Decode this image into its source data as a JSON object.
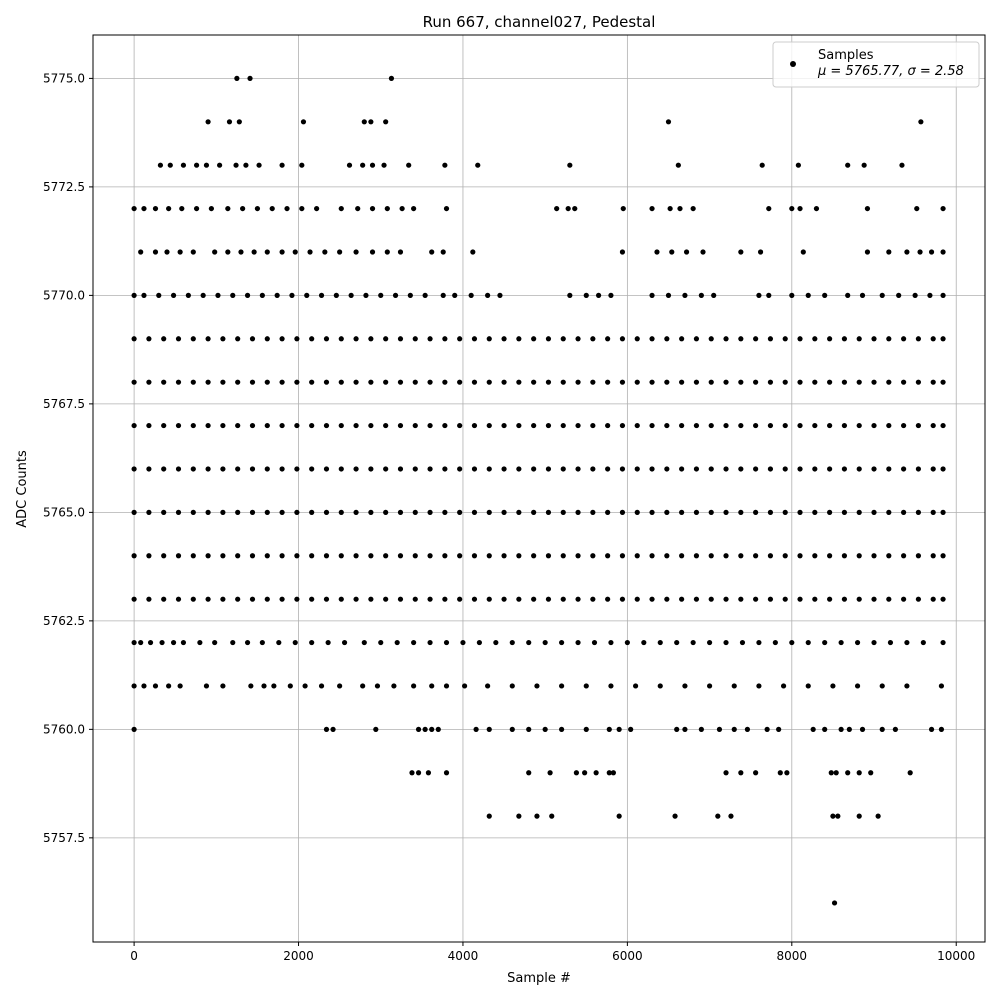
{
  "chart_data": {
    "type": "scatter",
    "title": "Run 667, channel027, Pedestal",
    "xlabel": "Sample #",
    "ylabel": "ADC Counts",
    "xlim": [
      -500,
      10350
    ],
    "ylim": [
      5755.1,
      5776.0
    ],
    "xticks": [
      0,
      2000,
      4000,
      6000,
      8000,
      10000
    ],
    "xtick_labels": [
      "0",
      "2000",
      "4000",
      "6000",
      "8000",
      "10000"
    ],
    "yticks": [
      5757.5,
      5760.0,
      5762.5,
      5765.0,
      5767.5,
      5770.0,
      5772.5,
      5775.0
    ],
    "ytick_labels": [
      "5757.5",
      "5760.0",
      "5762.5",
      "5765.0",
      "5767.5",
      "5770.0",
      "5772.5",
      "5775.0"
    ],
    "grid": true,
    "legend": {
      "position": "top-right",
      "entry": "Samples",
      "stats": "μ = 5765.77, σ = 2.58"
    },
    "color": "#000000",
    "series": [
      {
        "name": "Samples",
        "n_samples": 9850,
        "mean": 5765.77,
        "std": 2.58,
        "levels": [
          {
            "y": 5756,
            "x": [
              8520
            ]
          },
          {
            "y": 5758,
            "x": [
              4320,
              4680,
              4900,
              5080,
              5900,
              6580,
              7100,
              7260,
              8500,
              8560,
              8820,
              9050
            ]
          },
          {
            "y": 5759,
            "x": [
              3380,
              3460,
              3580,
              3800,
              4800,
              5060,
              5380,
              5480,
              5620,
              5780,
              5830,
              7200,
              7380,
              7560,
              7860,
              7940,
              8480,
              8540,
              8680,
              8820,
              8960,
              9440
            ]
          },
          {
            "y": 5760,
            "x": [
              0,
              2340,
              2420,
              2940,
              3460,
              3540,
              3620,
              3700,
              4160,
              4320,
              4600,
              4800,
              5000,
              5200,
              5500,
              5780,
              5900,
              6040,
              6600,
              6700,
              6900,
              7120,
              7300,
              7460,
              7700,
              7840,
              8260,
              8400,
              8600,
              8700,
              8860,
              9100,
              9260,
              9700,
              9820
            ]
          },
          {
            "y": 5761,
            "x": [
              0,
              120,
              260,
              420,
              560,
              880,
              1080,
              1420,
              1580,
              1700,
              1900,
              2080,
              2280,
              2500,
              2780,
              2960,
              3160,
              3400,
              3620,
              3800,
              4020,
              4300,
              4600,
              4900,
              5200,
              5500,
              5800,
              6100,
              6400,
              6700,
              7000,
              7300,
              7600,
              7900,
              8200,
              8500,
              8800,
              9100,
              9400,
              9820
            ]
          },
          {
            "y": 5762,
            "x": [
              0,
              80,
              200,
              340,
              480,
              600,
              800,
              980,
              1200,
              1380,
              1560,
              1760,
              1960,
              2160,
              2360,
              2560,
              2800,
              3000,
              3200,
              3400,
              3600,
              3800,
              4000,
              4200,
              4400,
              4600,
              4800,
              5000,
              5200,
              5400,
              5600,
              5800,
              6000,
              6200,
              6400,
              6600,
              6800,
              7000,
              7200,
              7400,
              7600,
              7800,
              8000,
              8200,
              8400,
              8600,
              8800,
              9000,
              9200,
              9400,
              9600,
              9840
            ]
          },
          {
            "y": 5763,
            "x": [
              0,
              180,
              360,
              540,
              720,
              900,
              1080,
              1260,
              1440,
              1620,
              1800,
              1980,
              2160,
              2340,
              2520,
              2700,
              2880,
              3060,
              3240,
              3420,
              3600,
              3780,
              3960,
              4140,
              4320,
              4500,
              4680,
              4860,
              5040,
              5220,
              5400,
              5580,
              5760,
              5940,
              6120,
              6300,
              6480,
              6660,
              6840,
              7020,
              7200,
              7380,
              7560,
              7740,
              7920,
              8100,
              8280,
              8460,
              8640,
              8820,
              9000,
              9180,
              9360,
              9540,
              9720,
              9840
            ]
          },
          {
            "y": 5764,
            "x": [
              0,
              180,
              360,
              540,
              720,
              900,
              1080,
              1260,
              1440,
              1620,
              1800,
              1980,
              2160,
              2340,
              2520,
              2700,
              2880,
              3060,
              3240,
              3420,
              3600,
              3780,
              3960,
              4140,
              4320,
              4500,
              4680,
              4860,
              5040,
              5220,
              5400,
              5580,
              5760,
              5940,
              6120,
              6300,
              6480,
              6660,
              6840,
              7020,
              7200,
              7380,
              7560,
              7740,
              7920,
              8100,
              8280,
              8460,
              8640,
              8820,
              9000,
              9180,
              9360,
              9540,
              9720,
              9840
            ]
          },
          {
            "y": 5765,
            "x": [
              0,
              180,
              360,
              540,
              720,
              900,
              1080,
              1260,
              1440,
              1620,
              1800,
              1980,
              2160,
              2340,
              2520,
              2700,
              2880,
              3060,
              3240,
              3420,
              3600,
              3780,
              3960,
              4140,
              4320,
              4500,
              4680,
              4860,
              5040,
              5220,
              5400,
              5580,
              5760,
              5940,
              6120,
              6300,
              6480,
              6660,
              6840,
              7020,
              7200,
              7380,
              7560,
              7740,
              7920,
              8100,
              8280,
              8460,
              8640,
              8820,
              9000,
              9180,
              9360,
              9540,
              9720,
              9840
            ]
          },
          {
            "y": 5766,
            "x": [
              0,
              180,
              360,
              540,
              720,
              900,
              1080,
              1260,
              1440,
              1620,
              1800,
              1980,
              2160,
              2340,
              2520,
              2700,
              2880,
              3060,
              3240,
              3420,
              3600,
              3780,
              3960,
              4140,
              4320,
              4500,
              4680,
              4860,
              5040,
              5220,
              5400,
              5580,
              5760,
              5940,
              6120,
              6300,
              6480,
              6660,
              6840,
              7020,
              7200,
              7380,
              7560,
              7740,
              7920,
              8100,
              8280,
              8460,
              8640,
              8820,
              9000,
              9180,
              9360,
              9540,
              9720,
              9840
            ]
          },
          {
            "y": 5767,
            "x": [
              0,
              180,
              360,
              540,
              720,
              900,
              1080,
              1260,
              1440,
              1620,
              1800,
              1980,
              2160,
              2340,
              2520,
              2700,
              2880,
              3060,
              3240,
              3420,
              3600,
              3780,
              3960,
              4140,
              4320,
              4500,
              4680,
              4860,
              5040,
              5220,
              5400,
              5580,
              5760,
              5940,
              6120,
              6300,
              6480,
              6660,
              6840,
              7020,
              7200,
              7380,
              7560,
              7740,
              7920,
              8100,
              8280,
              8460,
              8640,
              8820,
              9000,
              9180,
              9360,
              9540,
              9720,
              9840
            ]
          },
          {
            "y": 5768,
            "x": [
              0,
              180,
              360,
              540,
              720,
              900,
              1080,
              1260,
              1440,
              1620,
              1800,
              1980,
              2160,
              2340,
              2520,
              2700,
              2880,
              3060,
              3240,
              3420,
              3600,
              3780,
              3960,
              4140,
              4320,
              4500,
              4680,
              4860,
              5040,
              5220,
              5400,
              5580,
              5760,
              5940,
              6120,
              6300,
              6480,
              6660,
              6840,
              7020,
              7200,
              7380,
              7560,
              7740,
              7920,
              8100,
              8280,
              8460,
              8640,
              8820,
              9000,
              9180,
              9360,
              9540,
              9720,
              9840
            ]
          },
          {
            "y": 5769,
            "x": [
              0,
              180,
              360,
              540,
              720,
              900,
              1080,
              1260,
              1440,
              1620,
              1800,
              1980,
              2160,
              2340,
              2520,
              2700,
              2880,
              3060,
              3240,
              3420,
              3600,
              3780,
              3960,
              4140,
              4320,
              4500,
              4680,
              4860,
              5040,
              5220,
              5400,
              5580,
              5760,
              5940,
              6120,
              6300,
              6480,
              6660,
              6840,
              7020,
              7200,
              7380,
              7560,
              7740,
              7920,
              8100,
              8280,
              8460,
              8640,
              8820,
              9000,
              9180,
              9360,
              9540,
              9720,
              9840
            ]
          },
          {
            "y": 5770,
            "x": [
              0,
              120,
              300,
              480,
              660,
              840,
              1020,
              1200,
              1380,
              1560,
              1740,
              1920,
              2100,
              2280,
              2460,
              2640,
              2820,
              3000,
              3180,
              3360,
              3540,
              3760,
              3900,
              4100,
              4300,
              4450,
              5300,
              5500,
              5650,
              5800,
              6300,
              6500,
              6700,
              6900,
              7050,
              7600,
              7720,
              8000,
              8200,
              8400,
              8680,
              8860,
              9100,
              9300,
              9500,
              9680,
              9840
            ]
          },
          {
            "y": 5771,
            "x": [
              80,
              260,
              400,
              560,
              720,
              980,
              1140,
              1300,
              1460,
              1620,
              1800,
              1960,
              2140,
              2320,
              2500,
              2700,
              2900,
              3080,
              3240,
              3620,
              3760,
              4120,
              5940,
              6360,
              6540,
              6720,
              6920,
              7380,
              7620,
              8140,
              8920,
              9180,
              9400,
              9560,
              9700,
              9840
            ]
          },
          {
            "y": 5772,
            "x": [
              0,
              120,
              260,
              420,
              580,
              760,
              940,
              1140,
              1320,
              1500,
              1680,
              1860,
              2040,
              2220,
              2520,
              2720,
              2900,
              3080,
              3260,
              3400,
              3800,
              5140,
              5280,
              5360,
              5950,
              6300,
              6520,
              6640,
              6800,
              7720,
              8000,
              8100,
              8300,
              8920,
              9520,
              9840
            ]
          },
          {
            "y": 5773,
            "x": [
              320,
              440,
              600,
              760,
              880,
              1040,
              1240,
              1360,
              1520,
              1800,
              2040,
              2620,
              2780,
              2900,
              3040,
              3340,
              3780,
              4180,
              5300,
              6620,
              7640,
              8080,
              8680,
              8880,
              9340
            ]
          },
          {
            "y": 5774,
            "x": [
              900,
              1160,
              1280,
              2060,
              2800,
              2880,
              3060,
              6500,
              9570
            ]
          },
          {
            "y": 5775,
            "x": [
              1250,
              1410,
              3130
            ]
          }
        ]
      }
    ]
  }
}
